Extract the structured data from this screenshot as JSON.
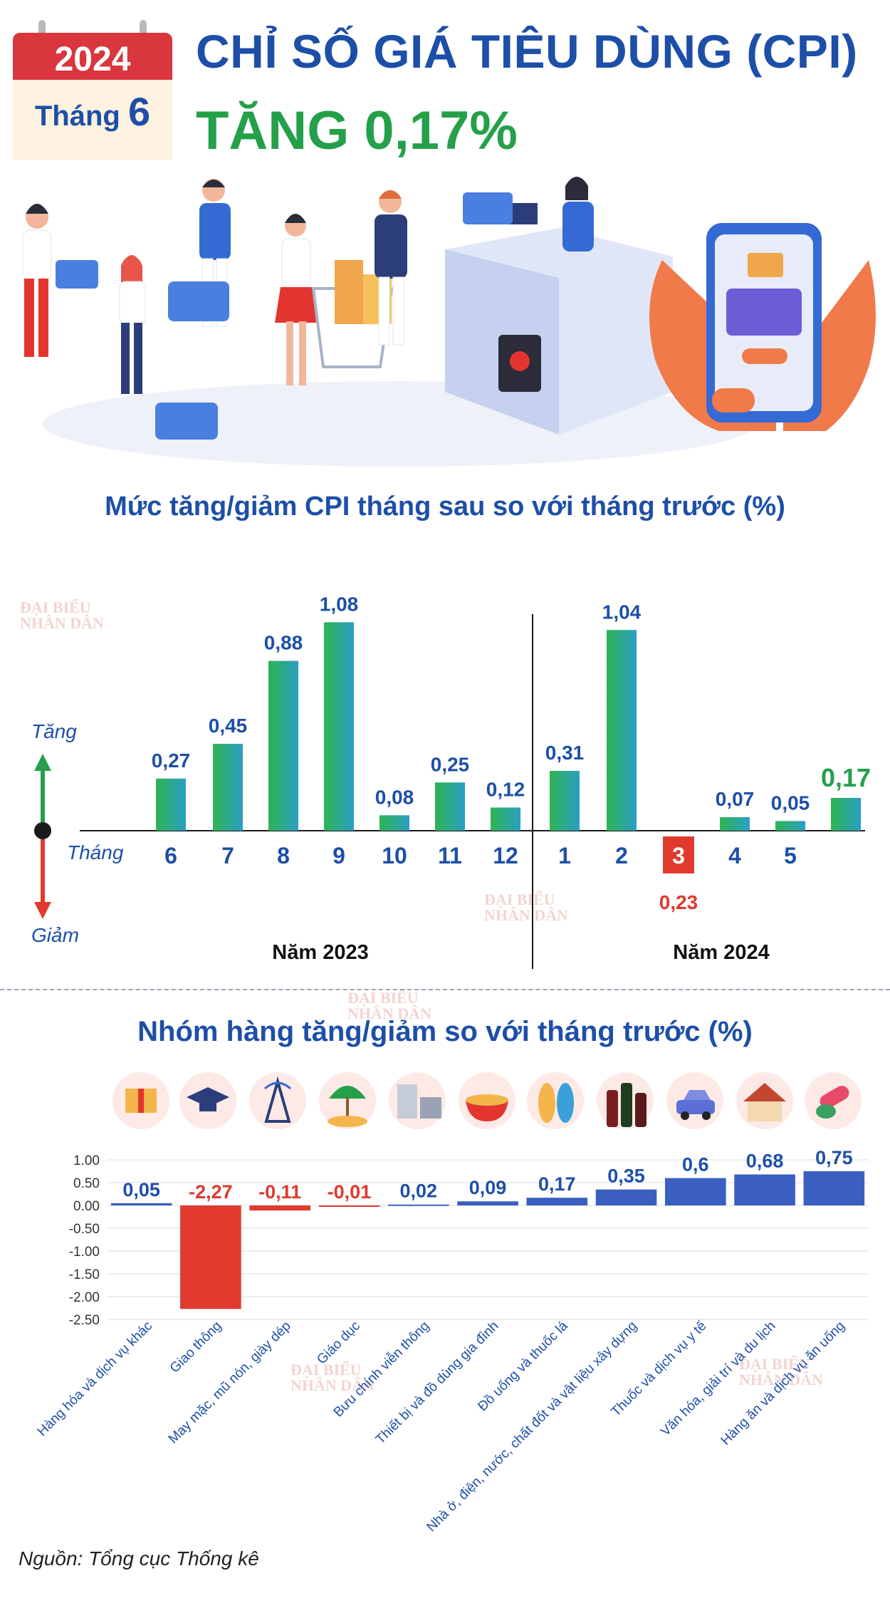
{
  "header": {
    "year": "2024",
    "month_label": "Tháng",
    "month_number": "6",
    "title_line1": "CHỈ SỐ GIÁ TIÊU DÙNG (CPI)",
    "title_line2": "TĂNG 0,17%"
  },
  "watermark": {
    "line1": "ĐẠI BIỂU",
    "line2": "NHÂN DÂN"
  },
  "section1": {
    "title": "Mức tăng/giảm CPI tháng sau so với tháng trước (%)",
    "up_label": "Tăng",
    "down_label": "Giảm",
    "month_axis_label": "Tháng"
  },
  "section2": {
    "title": "Nhóm hàng tăng/giảm so với tháng trước (%)"
  },
  "source": "Nguồn: Tổng cục Thống kê",
  "colors": {
    "navy": "#1d4fa8",
    "green": "#25a04a",
    "red": "#e03a2f",
    "bar_blue": "#3a5fc0"
  },
  "icons": [
    "gift-box-icon",
    "graduation-cap-icon",
    "antenna-icon",
    "beach-umbrella-icon",
    "appliances-icon",
    "food-bowl-icon",
    "sandals-icon",
    "bottles-icon",
    "car-icon",
    "house-icon",
    "pills-icon"
  ],
  "chart_data": [
    {
      "type": "bar",
      "title": "Mức tăng/giảm CPI tháng sau so với tháng trước (%)",
      "groups": [
        {
          "name": "Năm 2023",
          "categories": [
            "6",
            "7",
            "8",
            "9",
            "10",
            "11",
            "12"
          ]
        },
        {
          "name": "Năm 2024",
          "categories": [
            "1",
            "2",
            "3",
            "4",
            "5",
            ""
          ]
        }
      ],
      "categories": [
        "6",
        "7",
        "8",
        "9",
        "10",
        "11",
        "12",
        "1",
        "2",
        "3",
        "4",
        "5",
        ""
      ],
      "values": [
        0.27,
        0.45,
        0.88,
        1.08,
        0.08,
        0.25,
        0.12,
        0.31,
        1.04,
        -0.23,
        0.07,
        0.05,
        0.17
      ],
      "labels": [
        "0,27",
        "0,45",
        "0,88",
        "1,08",
        "0,08",
        "0,25",
        "0,12",
        "0,31",
        "1,04",
        "0,23",
        "0,07",
        "0,05",
        "0,17"
      ],
      "highlight_index": 12
    },
    {
      "type": "bar",
      "title": "Nhóm hàng tăng/giảm so với tháng trước (%)",
      "categories": [
        "Hàng hóa và dịch vụ khác",
        "Giao thông",
        "May mặc, mũ nón, giày dép",
        "Giáo dục",
        "Bưu chính viễn thông",
        "Thiết bị và đồ dùng gia đình",
        "Đồ uống và thuốc lá",
        "Nhà ở, điện, nước, chất đốt và vật liệu xây dựng",
        "Thuốc và dịch vụ y tế",
        "Văn hóa, giải trí và du lịch",
        "Hàng ăn và dịch vụ ăn uống"
      ],
      "values": [
        0.05,
        -2.27,
        -0.11,
        -0.01,
        0.02,
        0.09,
        0.17,
        0.35,
        0.6,
        0.68,
        0.75
      ],
      "labels": [
        "0,05",
        "-2,27",
        "-0,11",
        "-0,01",
        "0,02",
        "0,09",
        "0,17",
        "0,35",
        "0,6",
        "0,68",
        "0,75"
      ],
      "yticks": [
        "1.00",
        "0.50",
        "0.00",
        "-0.50",
        "-1.00",
        "-1.50",
        "-2.00",
        "-2.50"
      ],
      "ylim": [
        -2.5,
        1.0
      ],
      "grid": true
    }
  ]
}
